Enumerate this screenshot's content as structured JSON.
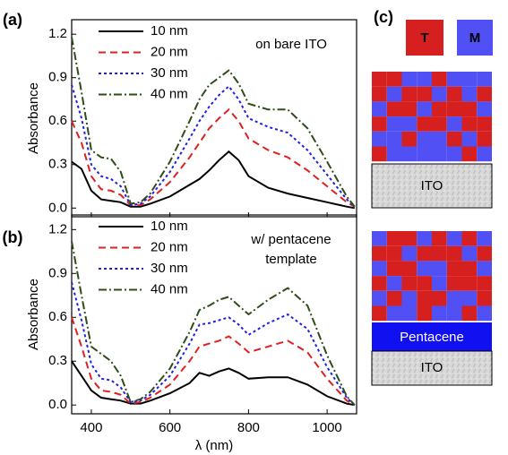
{
  "chart_data": [
    {
      "type": "line",
      "label": "(a)",
      "ylabel": "Absorbance",
      "annotation": [
        "on bare ITO"
      ],
      "x": [
        350,
        375,
        400,
        425,
        450,
        475,
        500,
        525,
        550,
        600,
        650,
        675,
        700,
        725,
        750,
        775,
        800,
        850,
        900,
        950,
        1000,
        1050,
        1070
      ],
      "xlim": [
        350,
        1075
      ],
      "xticks": [
        400,
        600,
        800,
        1000
      ],
      "ylim": [
        -0.06,
        1.3
      ],
      "yticks": [
        {
          "value": 0,
          "label": "0.0"
        },
        0.3,
        0.6,
        0.9,
        1.2
      ],
      "series": [
        {
          "name": "10 nm",
          "color": "#000000",
          "dash": "solid",
          "values": [
            0.32,
            0.27,
            0.12,
            0.06,
            0.05,
            0.04,
            0.01,
            0.01,
            0.03,
            0.08,
            0.16,
            0.2,
            0.26,
            0.33,
            0.39,
            0.33,
            0.22,
            0.14,
            0.1,
            0.07,
            0.04,
            0.01,
            0.0
          ]
        },
        {
          "name": "20 nm",
          "color": "#e02020",
          "dash": "dashed",
          "values": [
            0.6,
            0.45,
            0.22,
            0.13,
            0.12,
            0.09,
            0.02,
            0.02,
            0.06,
            0.18,
            0.35,
            0.45,
            0.55,
            0.62,
            0.68,
            0.6,
            0.48,
            0.4,
            0.35,
            0.26,
            0.15,
            0.04,
            0.01
          ]
        },
        {
          "name": "30 nm",
          "color": "#2020e0",
          "dash": "dotted",
          "values": [
            0.85,
            0.62,
            0.3,
            0.22,
            0.2,
            0.15,
            0.02,
            0.03,
            0.08,
            0.25,
            0.48,
            0.6,
            0.7,
            0.78,
            0.84,
            0.75,
            0.62,
            0.56,
            0.52,
            0.4,
            0.23,
            0.06,
            0.01
          ]
        },
        {
          "name": "40 nm",
          "color": "#2e4d1a",
          "dash": "dashdot",
          "values": [
            1.18,
            0.8,
            0.4,
            0.35,
            0.34,
            0.25,
            0.03,
            0.04,
            0.1,
            0.32,
            0.6,
            0.75,
            0.85,
            0.9,
            0.95,
            0.86,
            0.72,
            0.68,
            0.68,
            0.55,
            0.32,
            0.08,
            0.01
          ]
        }
      ]
    },
    {
      "type": "line",
      "label": "(b)",
      "ylabel": "Absorbance",
      "xlabel": "λ (nm)",
      "annotation": [
        "w/ pentacene",
        "template"
      ],
      "x": [
        350,
        375,
        400,
        425,
        450,
        475,
        500,
        525,
        550,
        600,
        650,
        675,
        700,
        725,
        750,
        775,
        800,
        850,
        900,
        950,
        1000,
        1050,
        1070
      ],
      "xlim": [
        350,
        1075
      ],
      "xticks": [
        400,
        600,
        800,
        1000
      ],
      "ylim": [
        -0.06,
        1.3
      ],
      "yticks": [
        {
          "value": 0,
          "label": "0.0"
        },
        0.3,
        0.6,
        0.9,
        1.2
      ],
      "series": [
        {
          "name": "10 nm",
          "color": "#000000",
          "dash": "solid",
          "values": [
            0.3,
            0.2,
            0.1,
            0.05,
            0.04,
            0.03,
            0.01,
            0.01,
            0.03,
            0.08,
            0.15,
            0.22,
            0.2,
            0.23,
            0.25,
            0.22,
            0.18,
            0.19,
            0.19,
            0.14,
            0.06,
            0.01,
            0.0
          ]
        },
        {
          "name": "20 nm",
          "color": "#e02020",
          "dash": "dashed",
          "values": [
            0.6,
            0.4,
            0.18,
            0.1,
            0.09,
            0.07,
            0.01,
            0.02,
            0.05,
            0.14,
            0.3,
            0.4,
            0.42,
            0.44,
            0.47,
            0.42,
            0.36,
            0.4,
            0.44,
            0.36,
            0.18,
            0.03,
            0.0
          ]
        },
        {
          "name": "30 nm",
          "color": "#2020e0",
          "dash": "dotted",
          "values": [
            0.84,
            0.58,
            0.28,
            0.18,
            0.17,
            0.12,
            0.02,
            0.03,
            0.07,
            0.2,
            0.42,
            0.55,
            0.56,
            0.58,
            0.6,
            0.55,
            0.48,
            0.56,
            0.62,
            0.52,
            0.26,
            0.05,
            0.0
          ]
        },
        {
          "name": "40 nm",
          "color": "#2e4d1a",
          "dash": "dashdot",
          "values": [
            1.12,
            0.75,
            0.4,
            0.35,
            0.3,
            0.2,
            0.02,
            0.04,
            0.09,
            0.25,
            0.5,
            0.65,
            0.68,
            0.72,
            0.74,
            0.68,
            0.62,
            0.72,
            0.8,
            0.68,
            0.34,
            0.06,
            0.0
          ]
        }
      ]
    }
  ],
  "diagram": {
    "label": "(c)",
    "legend": [
      "T",
      "M"
    ],
    "top": {
      "substrate": "ITO"
    },
    "bottom": {
      "layer": "Pentacene",
      "substrate": "ITO"
    }
  }
}
